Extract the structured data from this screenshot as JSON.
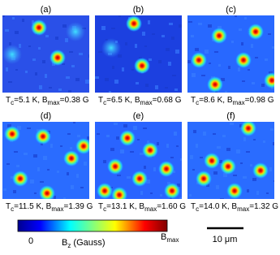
{
  "panels": [
    {
      "label": "(a)",
      "caption": [
        "T",
        "c",
        "=5.1 K, B",
        "max",
        "=0.38 G"
      ]
    },
    {
      "label": "(b)",
      "caption": [
        "T",
        "c",
        "=6.5 K, B",
        "max",
        "=0.68 G"
      ]
    },
    {
      "label": "(c)",
      "caption": [
        "T",
        "c",
        "=8.6 K, B",
        "max",
        "=0.98 G"
      ]
    },
    {
      "label": "(d)",
      "caption": [
        "T",
        "c",
        "=11.5 K, B",
        "max",
        "=1.39 G"
      ]
    },
    {
      "label": "(e)",
      "caption": [
        "T",
        "c",
        "=13.1 K, B",
        "max",
        "=1.60 G"
      ]
    },
    {
      "label": "(f)",
      "caption": [
        "T",
        "c",
        "=14.0 K, B",
        "max",
        "=1.32 G"
      ]
    }
  ],
  "colorbar": {
    "min_label": "0",
    "axis_label": [
      "B",
      "z",
      " (Gauss)"
    ],
    "max_label": [
      "B",
      "max"
    ]
  },
  "scale_bar": {
    "label": "10 μm"
  }
}
